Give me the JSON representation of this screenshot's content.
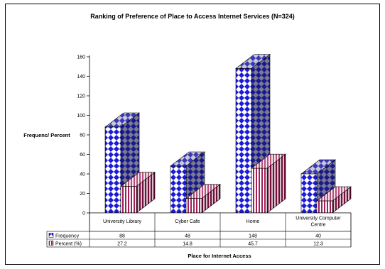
{
  "chart_data": {
    "type": "bar",
    "title": "Ranking of Preference of Place to Access Internet Services (N=324)",
    "xlabel": "Place for Internet Access",
    "ylabel": "Frequenc/ Percent",
    "ylim": [
      0,
      160
    ],
    "yticks": [
      "0",
      "20",
      "40",
      "60",
      "80",
      "100",
      "120",
      "140",
      "160"
    ],
    "grid": false,
    "legend": "table-below",
    "categories": [
      "University Library",
      "Cyber Cafe",
      "Home",
      "University Computer Centre"
    ],
    "series": [
      {
        "name": "Frequency",
        "values": [
          88,
          48,
          148,
          40
        ],
        "labels": [
          "88",
          "48",
          "148",
          "40"
        ],
        "color": "#2b2bd6",
        "pattern": "diamond-checker"
      },
      {
        "name": "Percent (%)",
        "values": [
          27.2,
          14.8,
          45.7,
          12.3
        ],
        "labels": [
          "27.2",
          "14.8",
          "45.7",
          "12.3"
        ],
        "color": "#9c1c4e",
        "pattern": "vertical-stripes"
      }
    ]
  }
}
